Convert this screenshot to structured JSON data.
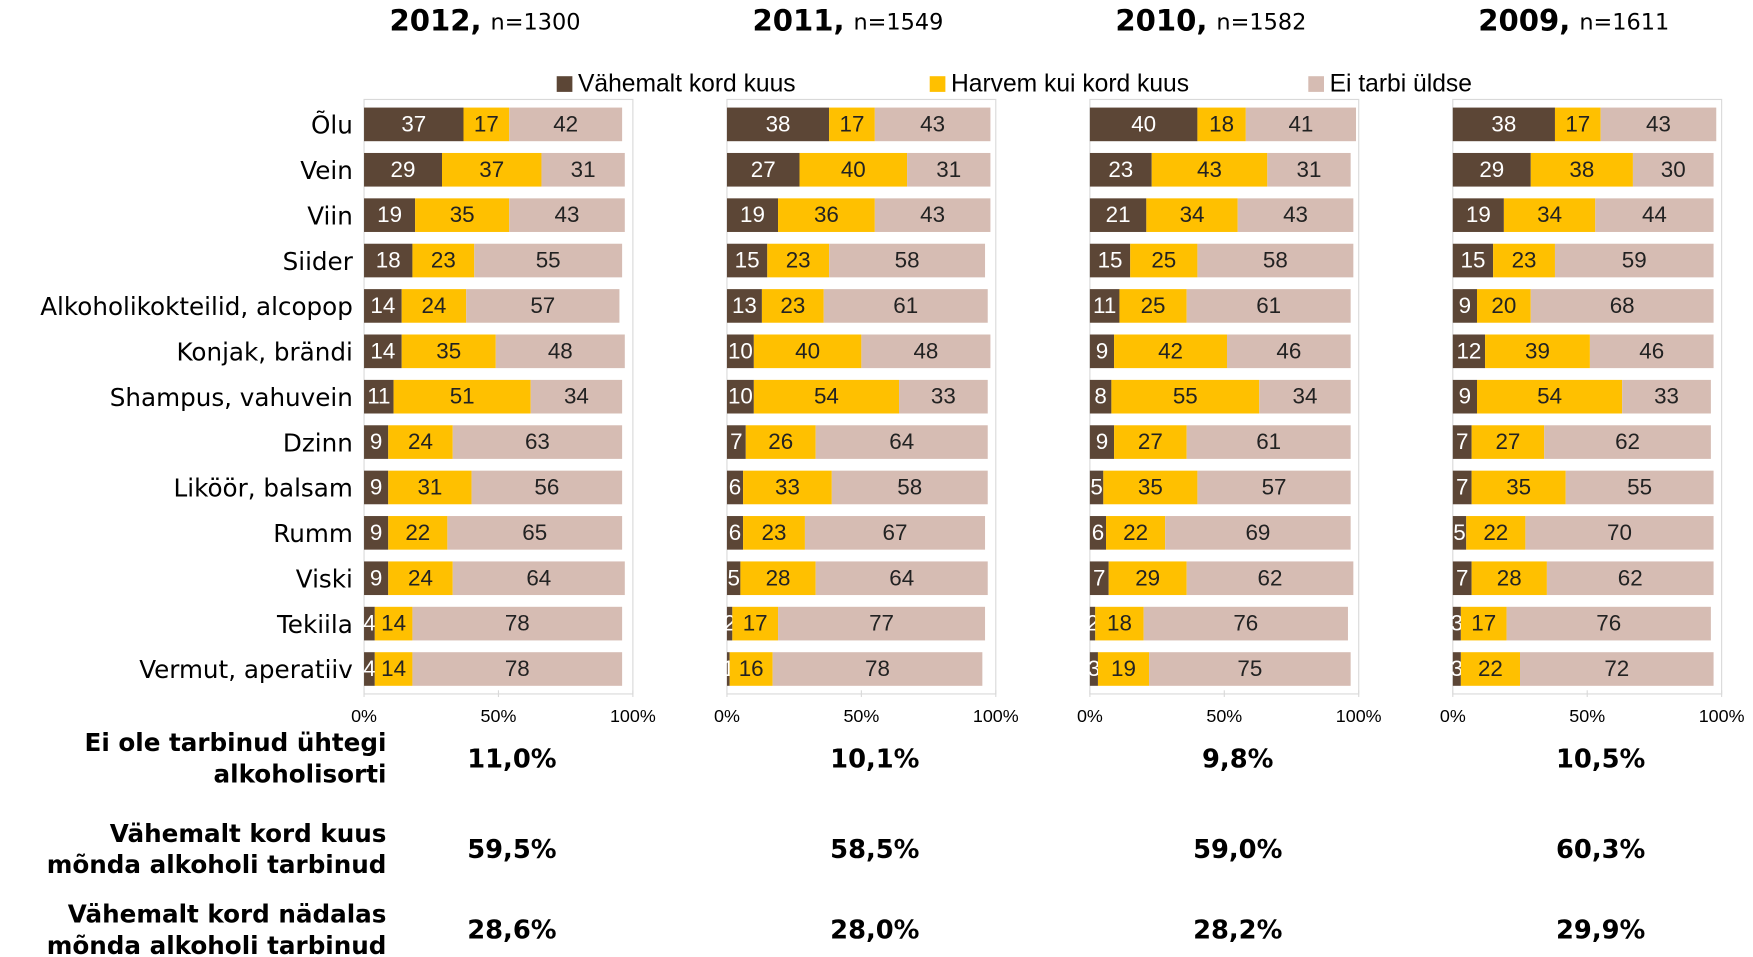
{
  "chart_data": [
    {
      "type": "bar",
      "orientation": "horizontal",
      "stacked": true,
      "title": "2012,",
      "subtitle": "n=1300",
      "categories": [
        "Õlu",
        "Vein",
        "Viin",
        "Siider",
        "Alkoholikokteilid, alcopop",
        "Konjak, brändi",
        "Shampus, vahuvein",
        "Dzinn",
        "Liköör, balsam",
        "Rumm",
        "Viski",
        "Tekiila",
        "Vermut, aperatiiv"
      ],
      "xlim": [
        0,
        100
      ],
      "xticks": [
        {
          "value": 0,
          "label": "0%"
        },
        {
          "value": 50,
          "label": "50%"
        },
        {
          "value": 100,
          "label": "100%"
        }
      ],
      "series": [
        {
          "name": "Vähemalt kord kuus",
          "color": "#5c4636",
          "values": [
            37,
            29,
            19,
            18,
            14,
            14,
            11,
            9,
            9,
            9,
            9,
            4,
            4
          ]
        },
        {
          "name": "Harvem kui kord kuus",
          "color": "#ffc000",
          "values": [
            17,
            37,
            35,
            23,
            24,
            35,
            51,
            24,
            31,
            22,
            24,
            14,
            14
          ]
        },
        {
          "name": "Ei tarbi üldse",
          "color": "#d6bcb3",
          "values": [
            42,
            31,
            43,
            55,
            57,
            48,
            34,
            63,
            56,
            65,
            64,
            78,
            78
          ]
        }
      ]
    },
    {
      "type": "bar",
      "orientation": "horizontal",
      "stacked": true,
      "title": "2011,",
      "subtitle": "n=1549",
      "xlim": [
        0,
        100
      ],
      "xticks": [
        {
          "value": 0,
          "label": "0%"
        },
        {
          "value": 50,
          "label": "50%"
        },
        {
          "value": 100,
          "label": "100%"
        }
      ],
      "series": [
        {
          "color": "#5c4636",
          "values": [
            38,
            27,
            19,
            15,
            13,
            10,
            10,
            7,
            6,
            6,
            5,
            2,
            1
          ]
        },
        {
          "color": "#ffc000",
          "values": [
            17,
            40,
            36,
            23,
            23,
            40,
            54,
            26,
            33,
            23,
            28,
            17,
            16
          ]
        },
        {
          "color": "#d6bcb3",
          "values": [
            43,
            31,
            43,
            58,
            61,
            48,
            33,
            64,
            58,
            67,
            64,
            77,
            78
          ]
        }
      ]
    },
    {
      "type": "bar",
      "orientation": "horizontal",
      "stacked": true,
      "title": "2010,",
      "subtitle": "n=1582",
      "xlim": [
        0,
        100
      ],
      "xticks": [
        {
          "value": 0,
          "label": "0%"
        },
        {
          "value": 50,
          "label": "50%"
        },
        {
          "value": 100,
          "label": "100%"
        }
      ],
      "series": [
        {
          "color": "#5c4636",
          "values": [
            40,
            23,
            21,
            15,
            11,
            9,
            8,
            9,
            5,
            6,
            7,
            2,
            3
          ]
        },
        {
          "color": "#ffc000",
          "values": [
            18,
            43,
            34,
            25,
            25,
            42,
            55,
            27,
            35,
            22,
            29,
            18,
            19
          ]
        },
        {
          "color": "#d6bcb3",
          "values": [
            41,
            31,
            43,
            58,
            61,
            46,
            34,
            61,
            57,
            69,
            62,
            76,
            75
          ]
        }
      ]
    },
    {
      "type": "bar",
      "orientation": "horizontal",
      "stacked": true,
      "title": "2009,",
      "subtitle": "n=1611",
      "xlim": [
        0,
        100
      ],
      "xticks": [
        {
          "value": 0,
          "label": "0%"
        },
        {
          "value": 50,
          "label": "50%"
        },
        {
          "value": 100,
          "label": "100%"
        }
      ],
      "series": [
        {
          "color": "#5c4636",
          "values": [
            38,
            29,
            19,
            15,
            9,
            12,
            9,
            7,
            7,
            5,
            7,
            3,
            3
          ]
        },
        {
          "color": "#ffc000",
          "values": [
            17,
            38,
            34,
            23,
            20,
            39,
            54,
            27,
            35,
            22,
            28,
            17,
            22
          ]
        },
        {
          "color": "#d6bcb3",
          "values": [
            43,
            30,
            44,
            59,
            68,
            46,
            33,
            62,
            55,
            70,
            62,
            76,
            72
          ]
        }
      ]
    }
  ],
  "summary": {
    "rows": [
      {
        "label": [
          "Ei ole tarbinud ühtegi",
          "alkoholisorti"
        ],
        "values": [
          "11,0%",
          "10,1%",
          "9,8%",
          "10,5%"
        ]
      },
      {
        "label": [
          "Vähemalt kord kuus",
          "mõnda alkoholi tarbinud"
        ],
        "values": [
          "59,5%",
          "58,5%",
          "59,0%",
          "60,3%"
        ]
      },
      {
        "label": [
          "Vähemalt kord nädalas",
          "mõnda alkoholi tarbinud"
        ],
        "values": [
          "28,6%",
          "28,0%",
          "28,2%",
          "29,9%"
        ]
      }
    ]
  }
}
